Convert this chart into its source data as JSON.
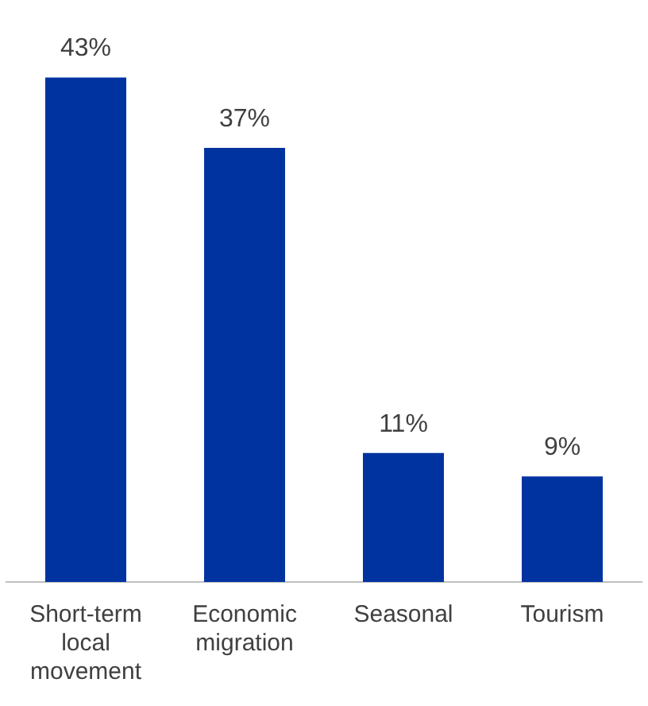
{
  "chart_data": {
    "type": "bar",
    "categories": [
      "Short-term local movement",
      "Economic migration",
      "Seasonal",
      "Tourism"
    ],
    "values": [
      43,
      37,
      11,
      9
    ],
    "color": "#0033a0",
    "value_labels": [
      "43%",
      "37%",
      "11%",
      "9%"
    ],
    "grid": false,
    "legend": false
  }
}
